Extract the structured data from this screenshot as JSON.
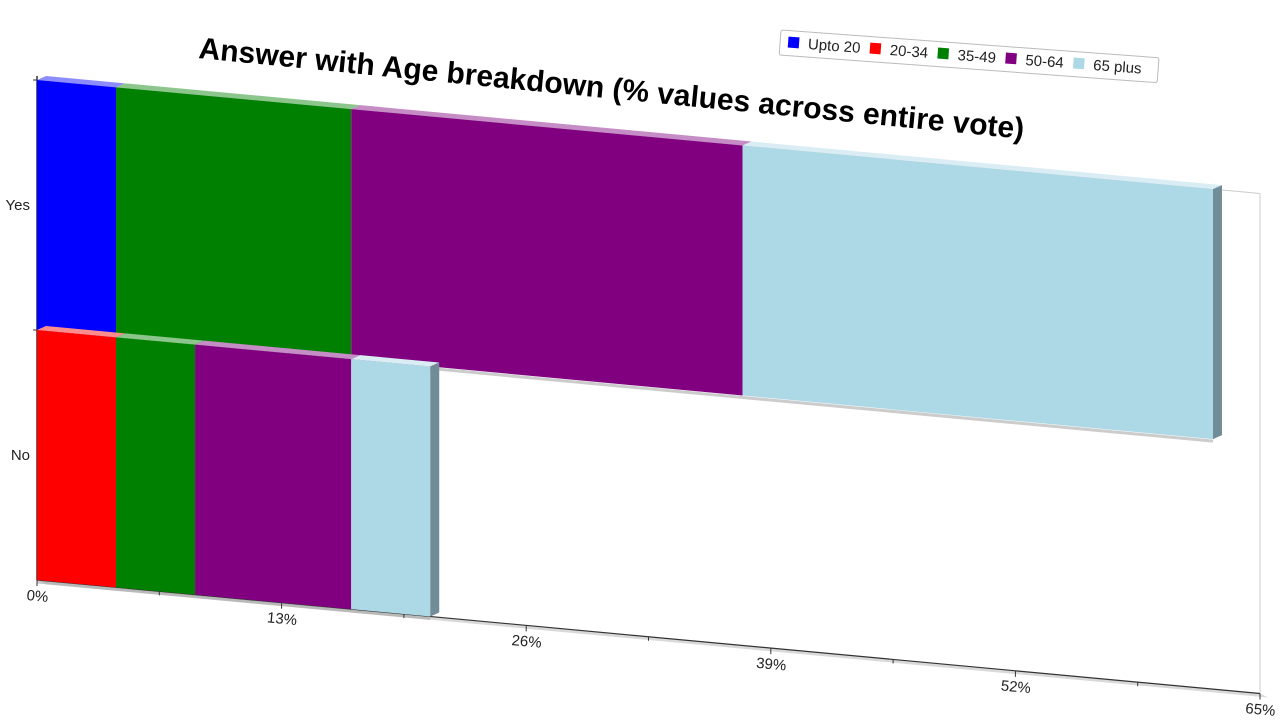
{
  "chart_data": {
    "type": "bar",
    "orientation": "horizontal",
    "stacked": true,
    "title": "Answer with Age breakdown (% values across entire vote)",
    "categories": [
      "Yes",
      "No"
    ],
    "series": [
      {
        "name": "Upto 20",
        "color": "#0000ff",
        "values": [
          4.2,
          0
        ]
      },
      {
        "name": "20-34",
        "color": "#ff0000",
        "values": [
          0,
          4.2
        ]
      },
      {
        "name": "35-49",
        "color": "#008000",
        "values": [
          12.5,
          4.2
        ]
      },
      {
        "name": "50-64",
        "color": "#800080",
        "values": [
          20.8,
          8.3
        ]
      },
      {
        "name": "65 plus",
        "color": "#add8e6",
        "values": [
          25.0,
          4.2
        ]
      }
    ],
    "xlim": [
      0,
      65
    ],
    "xticks": [
      "0%",
      "13%",
      "26%",
      "39%",
      "52%",
      "65%"
    ],
    "legend_position": "top-right",
    "grid": false
  }
}
